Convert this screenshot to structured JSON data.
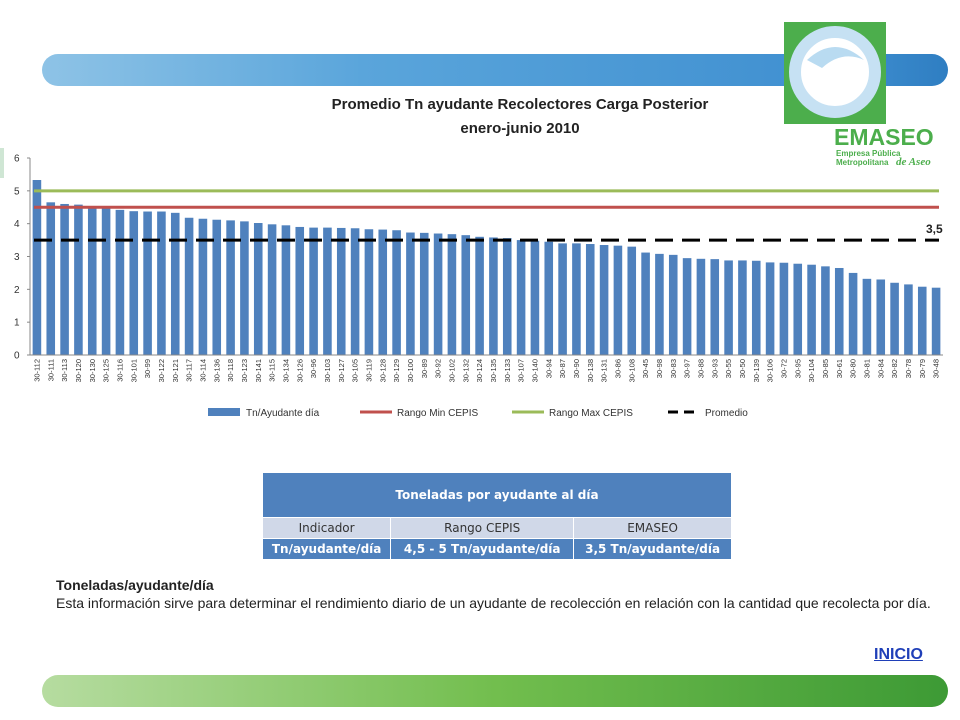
{
  "colors": {
    "bars": "#4f81bd",
    "rango_min": "#c0504d",
    "rango_max": "#9bbb59",
    "promedio": "#000000",
    "table_header": "#4f81bd",
    "table_row": "#d0d8e8",
    "inicio": "#1f3fb8"
  },
  "logo": {
    "name": "EMASEO",
    "line1": "Empresa Pública",
    "line2": "Metropolitana",
    "line3": "de Aseo"
  },
  "chart_data": {
    "type": "bar",
    "title": "Promedio Tn ayudante Recolectores Carga Posterior",
    "subtitle": "enero-junio 2010",
    "ylim": [
      0,
      6
    ],
    "yticks": [
      "0",
      "1",
      "2",
      "3",
      "4",
      "5",
      "6"
    ],
    "categories": [
      "30-112",
      "30-111",
      "30-113",
      "30-120",
      "30-130",
      "30-125",
      "30-116",
      "30-101",
      "30-99",
      "30-122",
      "30-121",
      "30-117",
      "30-114",
      "30-136",
      "30-118",
      "30-123",
      "30-141",
      "30-115",
      "30-134",
      "30-126",
      "30-96",
      "30-103",
      "30-127",
      "30-105",
      "30-119",
      "30-128",
      "30-129",
      "30-100",
      "30-89",
      "30-92",
      "30-102",
      "30-132",
      "30-124",
      "30-135",
      "30-133",
      "30-107",
      "30-140",
      "30-94",
      "30-87",
      "30-90",
      "30-138",
      "30-131",
      "30-86",
      "30-108",
      "30-45",
      "30-98",
      "30-83",
      "30-97",
      "30-88",
      "30-93",
      "30-55",
      "30-50",
      "30-139",
      "30-106",
      "30-72",
      "30-95",
      "30-104",
      "30-85",
      "30-61",
      "30-80",
      "30-81",
      "30-84",
      "30-82",
      "30-78",
      "30-79",
      "30-48"
    ],
    "series": [
      {
        "name": "Tn/Ayudante día",
        "type": "bar",
        "values": [
          5.33,
          4.65,
          4.6,
          4.58,
          4.5,
          4.48,
          4.42,
          4.38,
          4.37,
          4.37,
          4.33,
          4.18,
          4.15,
          4.12,
          4.1,
          4.07,
          4.02,
          3.98,
          3.95,
          3.9,
          3.88,
          3.88,
          3.87,
          3.86,
          3.83,
          3.82,
          3.8,
          3.73,
          3.72,
          3.7,
          3.68,
          3.65,
          3.6,
          3.58,
          3.56,
          3.5,
          3.48,
          3.45,
          3.4,
          3.4,
          3.38,
          3.35,
          3.33,
          3.3,
          3.12,
          3.08,
          3.05,
          2.95,
          2.93,
          2.92,
          2.88,
          2.88,
          2.87,
          2.82,
          2.81,
          2.78,
          2.75,
          2.7,
          2.65,
          2.5,
          2.32,
          2.3,
          2.2,
          2.15,
          2.08,
          2.05
        ]
      },
      {
        "name": "Rango Min CEPIS",
        "type": "line",
        "value": 4.5
      },
      {
        "name": "Rango Max CEPIS",
        "type": "line",
        "value": 5.0
      },
      {
        "name": "Promedio",
        "type": "dashed-line",
        "value": 3.5
      }
    ],
    "annotation": "3,5",
    "legend_position": "bottom",
    "grid": false
  },
  "table": {
    "title": "Toneladas por ayudante al día",
    "headers": [
      "Indicador",
      "Rango CEPIS",
      "EMASEO"
    ],
    "row": [
      "Tn/ayudante/día",
      "4,5 - 5 Tn/ayudante/día",
      "3,5 Tn/ayudante/día"
    ]
  },
  "description": {
    "heading": "Toneladas/ayudante/día",
    "body": "Esta información sirve para determinar el rendimiento diario de un ayudante de recolección en relación con la cantidad que recolecta por día."
  },
  "nav": {
    "inicio": "INICIO"
  }
}
